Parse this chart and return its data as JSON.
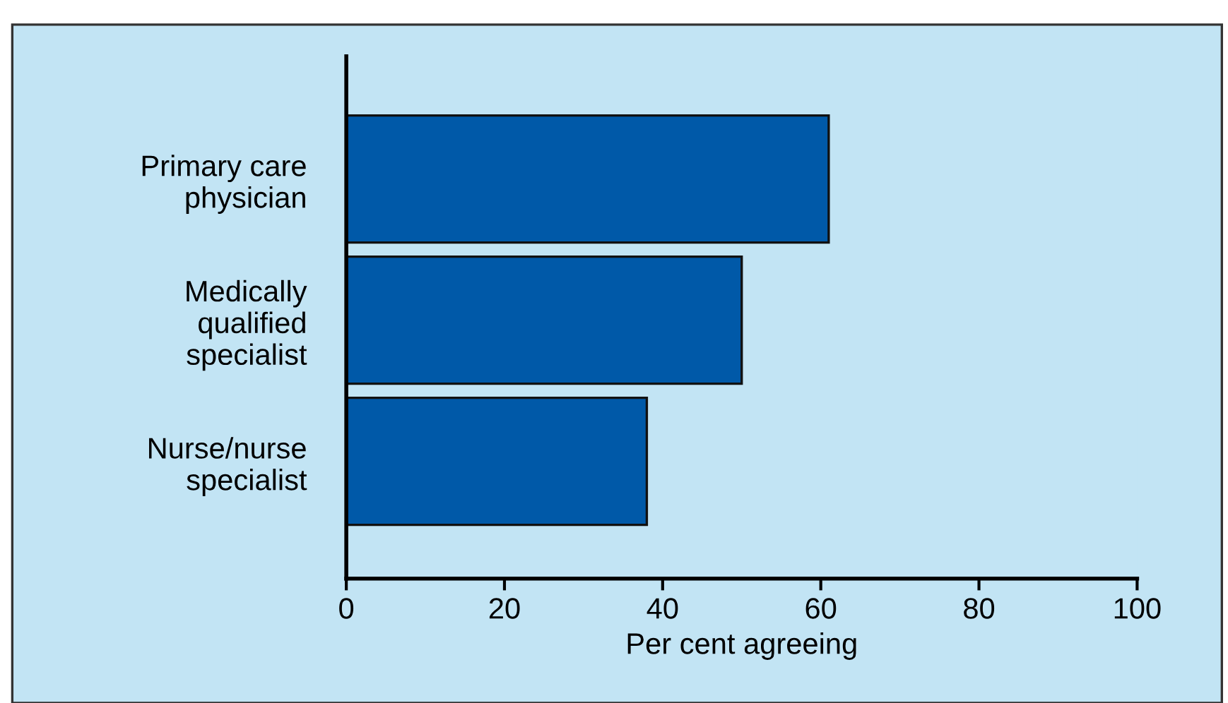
{
  "chart_data": {
    "type": "bar",
    "orientation": "horizontal",
    "xlabel": "Per cent agreeing",
    "categories": [
      "Primary care\nphysician",
      "Medically\nqualified\nspecialist",
      "Nurse/nurse\nspecialist"
    ],
    "values": [
      61,
      50,
      38
    ],
    "color": "#0059a8",
    "xlim": [
      0,
      100
    ],
    "xticks": [
      0,
      20,
      40,
      60,
      80,
      100
    ],
    "grid": false,
    "legend": false
  }
}
